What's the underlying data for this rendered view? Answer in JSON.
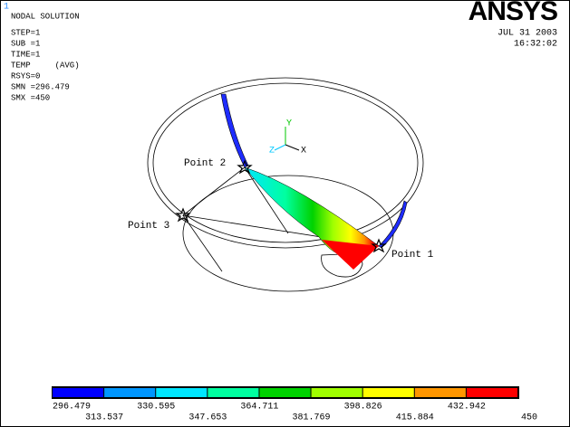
{
  "window_number": "1",
  "header": {
    "lines": [
      "NODAL SOLUTION",
      "STEP=1",
      "SUB =1",
      "TIME=1",
      "TEMP     (AVG)",
      "RSYS=0",
      "SMN =296.479",
      "SMX =450"
    ]
  },
  "logo": "ANSYS",
  "date": "JUL 31 2003",
  "time": "16:32:02",
  "triad": {
    "y": "Y",
    "z": "Z",
    "x": "X"
  },
  "points": [
    "Point 1",
    "Point 2",
    "Point 3"
  ],
  "legend": {
    "colors": [
      "#0000ff",
      "#0096ff",
      "#00e6ff",
      "#00ffa0",
      "#00d200",
      "#a0ff00",
      "#ffff00",
      "#ff9600",
      "#ff0000"
    ],
    "labels": [
      "296.479",
      "313.537",
      "330.595",
      "347.653",
      "364.711",
      "381.769",
      "398.826",
      "415.884",
      "432.942",
      "450"
    ]
  }
}
